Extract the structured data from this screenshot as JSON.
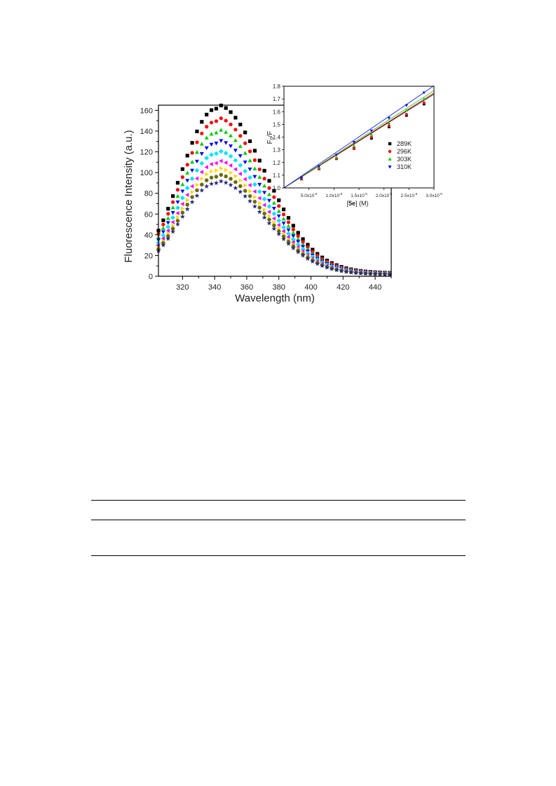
{
  "chart_data": [
    {
      "type": "scatter",
      "xlabel": "Wavelength (nm)",
      "ylabel": "Fluorescence Intensity (a.u.)",
      "xlim": [
        305,
        450
      ],
      "ylim": [
        0,
        165
      ],
      "xticks": [
        320,
        340,
        360,
        380,
        400,
        420,
        440
      ],
      "xtick_labels": [
        "320",
        "340",
        "360",
        "380",
        "400",
        "420",
        "440"
      ],
      "yticks": [
        0,
        20,
        40,
        60,
        80,
        100,
        120,
        140,
        160
      ],
      "ytick_labels": [
        "0",
        "20",
        "40",
        "60",
        "80",
        "100",
        "120",
        "140",
        "160"
      ],
      "x_start": 305,
      "x_step": 3,
      "x_end": 449,
      "peak_wavelength": 341,
      "series": [
        {
          "peak": 160,
          "color": "#000000",
          "marker": "square"
        },
        {
          "peak": 148,
          "color": "#ff0000",
          "marker": "circle"
        },
        {
          "peak": 137,
          "color": "#00cc00",
          "marker": "triangle-up"
        },
        {
          "peak": 127,
          "color": "#0000ff",
          "marker": "triangle-down"
        },
        {
          "peak": 117,
          "color": "#00e5ff",
          "marker": "diamond"
        },
        {
          "peak": 108,
          "color": "#ff00ff",
          "marker": "triangle-left"
        },
        {
          "peak": 101,
          "color": "#ffd700",
          "marker": "triangle-right"
        },
        {
          "peak": 95,
          "color": "#6b6b00",
          "marker": "hexagon"
        },
        {
          "peak": 89,
          "color": "#2a2a80",
          "marker": "star"
        }
      ]
    },
    {
      "type": "scatter",
      "xlabel_parts": [
        "[",
        "5e",
        "] (M)"
      ],
      "ylabel_parts": [
        "F",
        "0",
        "/F"
      ],
      "xlim": [
        0,
        3e-05
      ],
      "ylim": [
        1.0,
        1.8
      ],
      "xticks": [
        5e-06,
        1e-05,
        1.5e-05,
        2e-05,
        2.5e-05,
        3e-05
      ],
      "xtick_labels": [
        {
          "mant": "5.0x10",
          "exp": "-6"
        },
        {
          "mant": "1.0x10",
          "exp": "-5"
        },
        {
          "mant": "1.5x10",
          "exp": "-5"
        },
        {
          "mant": "2.0x10",
          "exp": "-5"
        },
        {
          "mant": "2.5x10",
          "exp": "-5"
        },
        {
          "mant": "3.0x10",
          "exp": "-5"
        }
      ],
      "yticks": [
        1.0,
        1.1,
        1.2,
        1.3,
        1.4,
        1.5,
        1.6,
        1.7,
        1.8
      ],
      "ytick_labels": [
        "1.0",
        "1.1",
        "1.2",
        "1.3",
        "1.4",
        "1.5",
        "1.6",
        "1.7",
        "1.8"
      ],
      "x": [
        3.5e-06,
        7e-06,
        1.05e-05,
        1.4e-05,
        1.75e-05,
        2.1e-05,
        2.45e-05,
        2.8e-05
      ],
      "legend_position": "right",
      "series": [
        {
          "name": "289K",
          "color": "#000000",
          "marker": "square",
          "slope": 24600,
          "y": [
            1.07,
            1.15,
            1.23,
            1.31,
            1.39,
            1.48,
            1.57,
            1.66
          ]
        },
        {
          "name": "296K",
          "color": "#ff0000",
          "marker": "circle",
          "slope": 24900,
          "y": [
            1.07,
            1.15,
            1.23,
            1.31,
            1.4,
            1.49,
            1.58,
            1.67
          ]
        },
        {
          "name": "303K",
          "color": "#00cc00",
          "marker": "triangle-up",
          "slope": 25500,
          "y": [
            1.08,
            1.16,
            1.24,
            1.33,
            1.42,
            1.51,
            1.61,
            1.7
          ]
        },
        {
          "name": "310K",
          "color": "#0000ff",
          "marker": "triangle-down",
          "slope": 26800,
          "y": [
            1.08,
            1.17,
            1.26,
            1.36,
            1.45,
            1.55,
            1.65,
            1.75
          ]
        }
      ]
    }
  ]
}
